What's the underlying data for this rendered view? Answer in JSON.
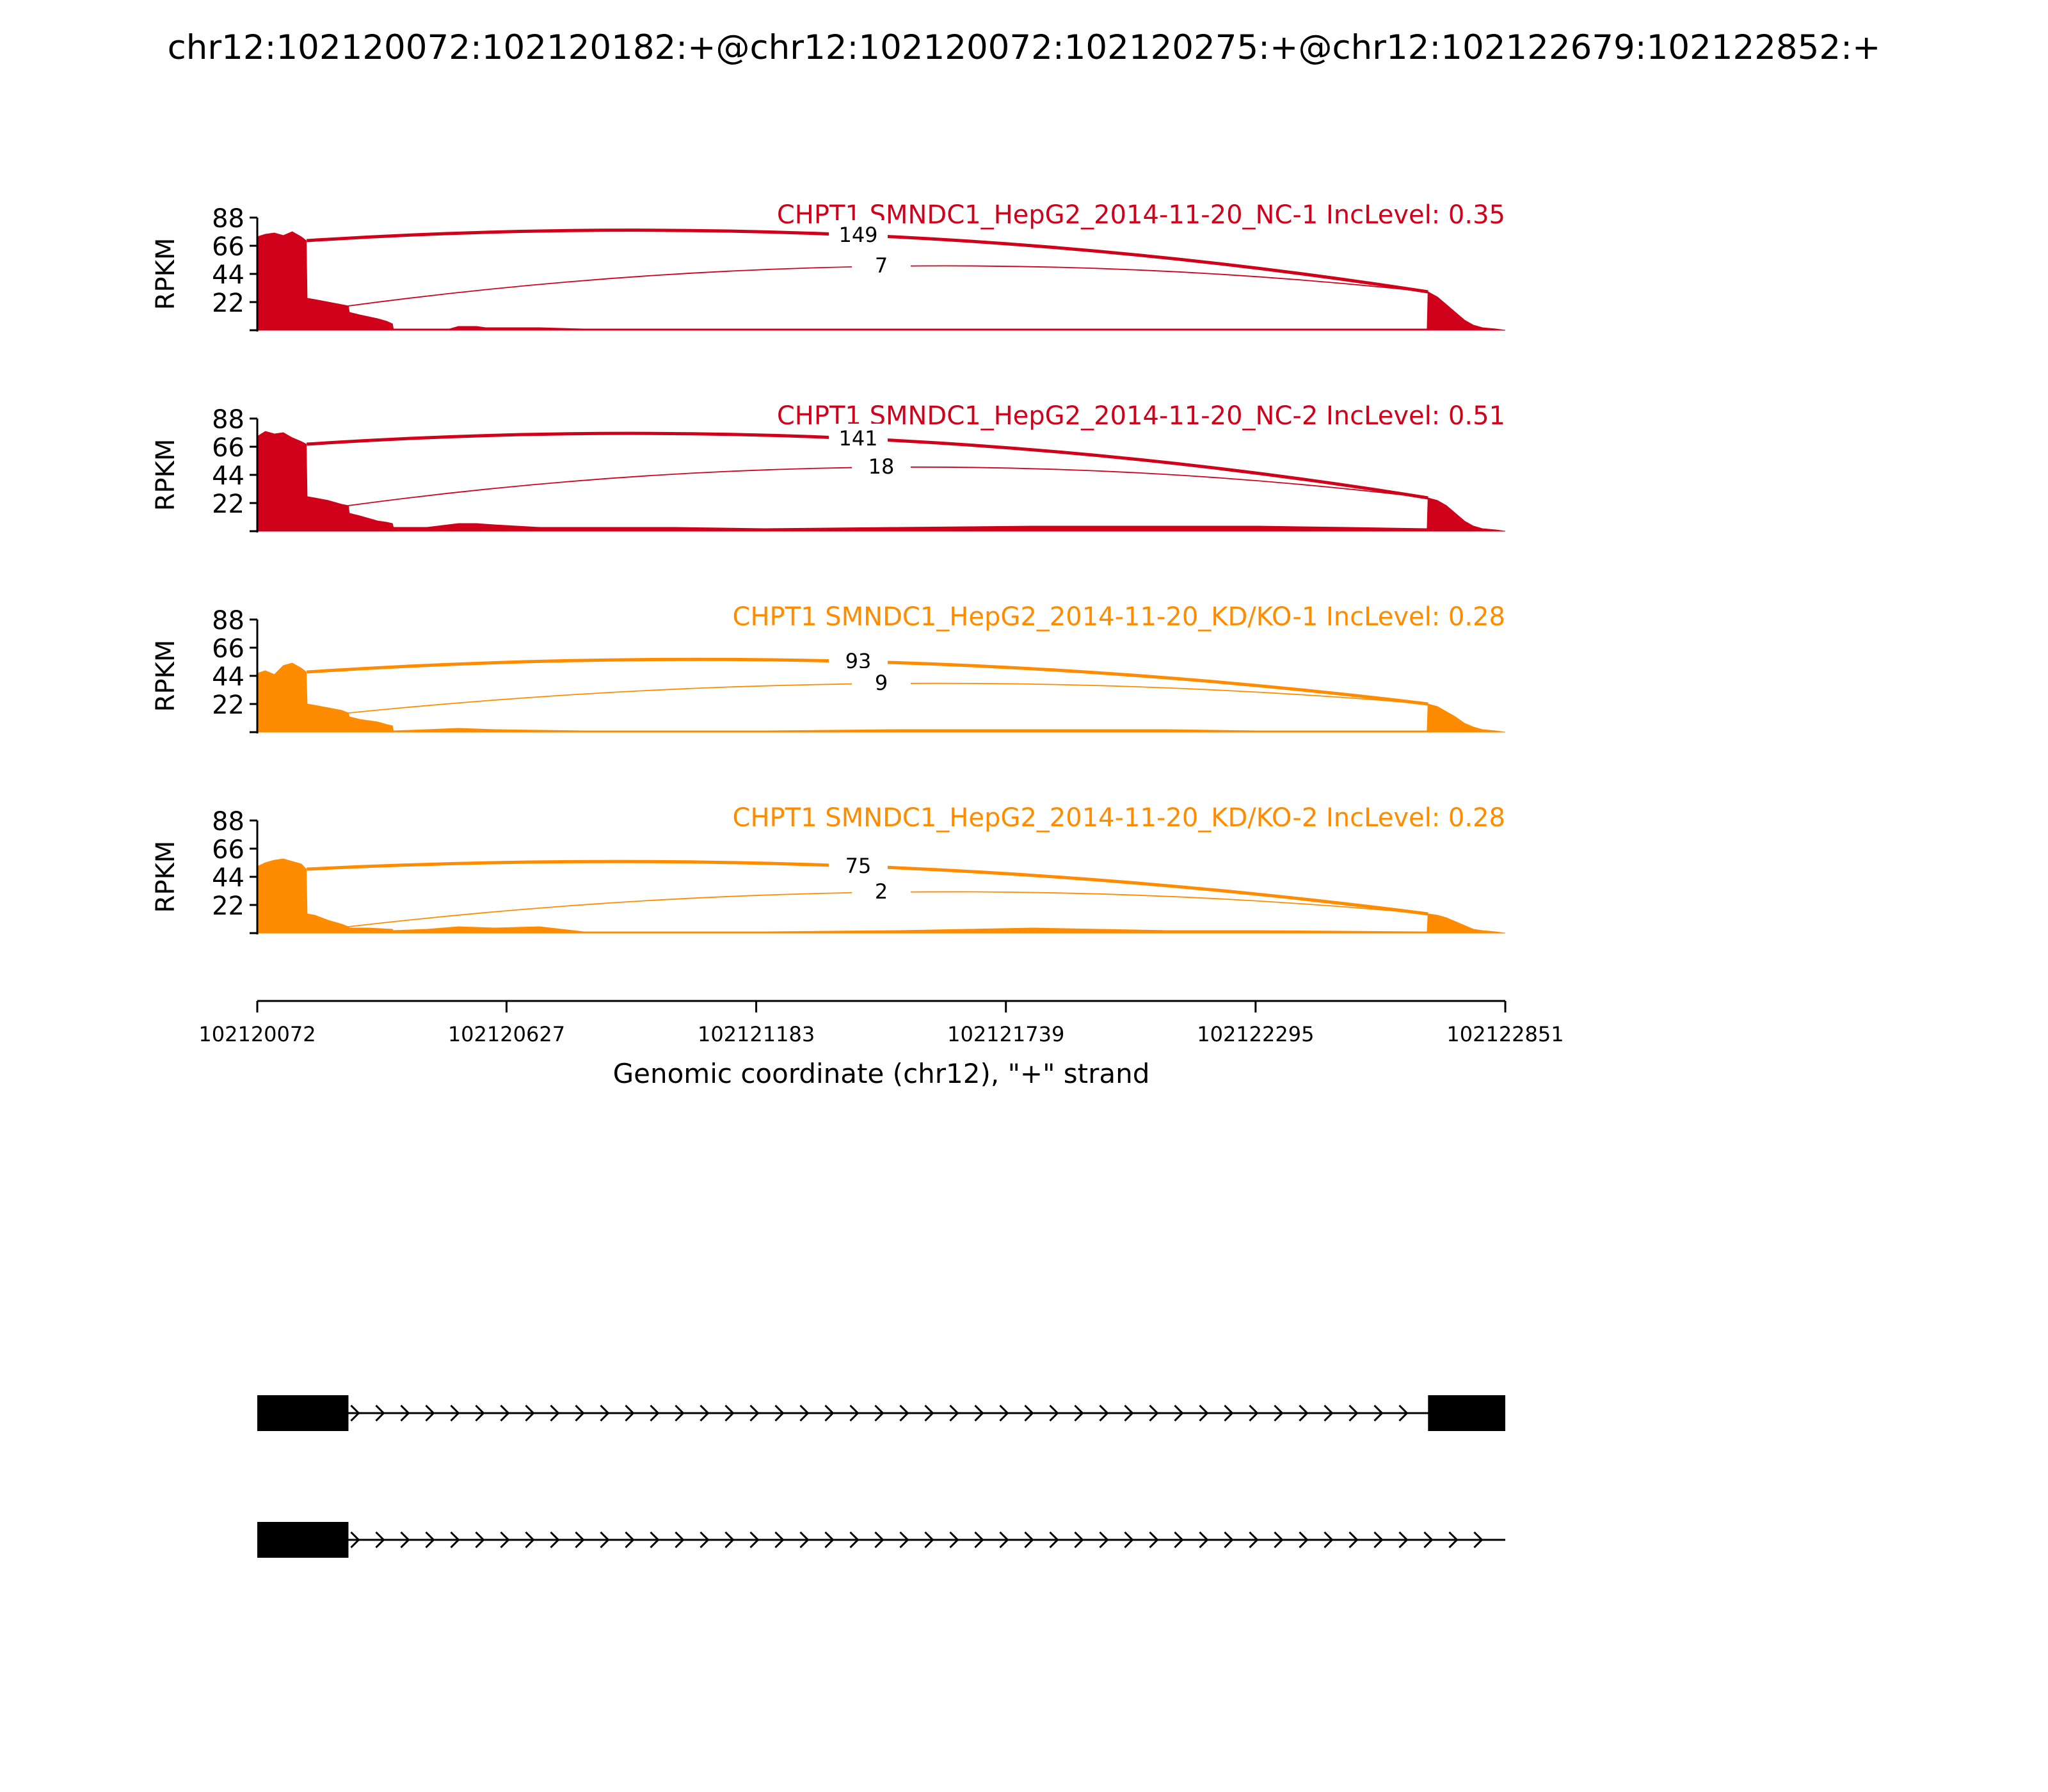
{
  "title": "chr12:102120072:102120182:+@chr12:102120072:102120275:+@chr12:102122679:102122852:+",
  "colors": {
    "nc": "#d0021b",
    "kd": "#ff8c00",
    "axis": "#000000",
    "gene": "#000000"
  },
  "chart_data": {
    "type": "area",
    "x_range": [
      102120072,
      102122851
    ],
    "x_ticks": [
      "102120072",
      "102120627",
      "102121183",
      "102121739",
      "102122295",
      "102122851"
    ],
    "xlabel": "Genomic coordinate (chr12), \"+\" strand",
    "ylabel": "RPKM",
    "y_range": [
      0,
      88
    ],
    "y_ticks": [
      "88",
      "66",
      "44",
      "22"
    ],
    "exons": [
      {
        "name": "exon_short",
        "start": 102120072,
        "end": 102120182
      },
      {
        "name": "exon_long",
        "start": 102120072,
        "end": 102120275
      },
      {
        "name": "exon_downstream",
        "start": 102122679,
        "end": 102122852
      }
    ],
    "panels": [
      {
        "label": "CHPT1 SMNDC1_HepG2_2014-11-20_NC-1 IncLevel: 0.35",
        "color_key": "nc",
        "coverage": [
          [
            102120072,
            73
          ],
          [
            102120090,
            75
          ],
          [
            102120110,
            76
          ],
          [
            102120130,
            74
          ],
          [
            102120150,
            77
          ],
          [
            102120170,
            73
          ],
          [
            102120181,
            70
          ],
          [
            102120183,
            25
          ],
          [
            102120200,
            24
          ],
          [
            102120230,
            22
          ],
          [
            102120260,
            20
          ],
          [
            102120275,
            19
          ],
          [
            102120277,
            14
          ],
          [
            102120300,
            12
          ],
          [
            102120340,
            9
          ],
          [
            102120360,
            7
          ],
          [
            102120373,
            5
          ],
          [
            102120375,
            1
          ],
          [
            102120500,
            1
          ],
          [
            102120520,
            3
          ],
          [
            102120560,
            3
          ],
          [
            102120580,
            2
          ],
          [
            102120700,
            2
          ],
          [
            102120800,
            1
          ],
          [
            102121000,
            1
          ],
          [
            102121200,
            1
          ],
          [
            102121500,
            1
          ],
          [
            102121800,
            1
          ],
          [
            102122100,
            1
          ],
          [
            102122300,
            1
          ],
          [
            102122500,
            1
          ],
          [
            102122677,
            1
          ],
          [
            102122679,
            30
          ],
          [
            102122700,
            26
          ],
          [
            102122720,
            20
          ],
          [
            102122740,
            14
          ],
          [
            102122760,
            8
          ],
          [
            102122780,
            4
          ],
          [
            102122800,
            2
          ],
          [
            102122830,
            1
          ],
          [
            102122851,
            0
          ]
        ],
        "junctions": [
          {
            "from": 102120182,
            "to": 102122679,
            "count": "149",
            "height": 74
          },
          {
            "from": 102120275,
            "to": 102122679,
            "count": "7",
            "height": 50
          }
        ]
      },
      {
        "label": "CHPT1 SMNDC1_HepG2_2014-11-20_NC-2 IncLevel: 0.51",
        "color_key": "nc",
        "coverage": [
          [
            102120072,
            74
          ],
          [
            102120090,
            78
          ],
          [
            102120110,
            76
          ],
          [
            102120130,
            77
          ],
          [
            102120150,
            73
          ],
          [
            102120170,
            70
          ],
          [
            102120181,
            68
          ],
          [
            102120183,
            27
          ],
          [
            102120200,
            26
          ],
          [
            102120230,
            24
          ],
          [
            102120260,
            21
          ],
          [
            102120275,
            20
          ],
          [
            102120277,
            14
          ],
          [
            102120300,
            12
          ],
          [
            102120340,
            8
          ],
          [
            102120360,
            7
          ],
          [
            102120373,
            6
          ],
          [
            102120375,
            3
          ],
          [
            102120450,
            3
          ],
          [
            102120520,
            6
          ],
          [
            102120560,
            6
          ],
          [
            102120600,
            5
          ],
          [
            102120700,
            3
          ],
          [
            102120800,
            3
          ],
          [
            102121000,
            3
          ],
          [
            102121200,
            2
          ],
          [
            102121500,
            3
          ],
          [
            102121800,
            4
          ],
          [
            102122100,
            4
          ],
          [
            102122300,
            4
          ],
          [
            102122500,
            3
          ],
          [
            102122677,
            2
          ],
          [
            102122679,
            26
          ],
          [
            102122700,
            24
          ],
          [
            102122720,
            20
          ],
          [
            102122740,
            14
          ],
          [
            102122760,
            8
          ],
          [
            102122780,
            4
          ],
          [
            102122800,
            2
          ],
          [
            102122830,
            1
          ],
          [
            102122851,
            0
          ]
        ],
        "junctions": [
          {
            "from": 102120182,
            "to": 102122679,
            "count": "141",
            "height": 72
          },
          {
            "from": 102120275,
            "to": 102122679,
            "count": "18",
            "height": 50
          }
        ]
      },
      {
        "label": "CHPT1 SMNDC1_HepG2_2014-11-20_KD/KO-1 IncLevel: 0.28",
        "color_key": "kd",
        "coverage": [
          [
            102120072,
            46
          ],
          [
            102120090,
            48
          ],
          [
            102120110,
            45
          ],
          [
            102120130,
            52
          ],
          [
            102120150,
            54
          ],
          [
            102120170,
            50
          ],
          [
            102120181,
            47
          ],
          [
            102120183,
            22
          ],
          [
            102120200,
            21
          ],
          [
            102120230,
            19
          ],
          [
            102120260,
            17
          ],
          [
            102120275,
            15
          ],
          [
            102120277,
            12
          ],
          [
            102120300,
            10
          ],
          [
            102120340,
            8
          ],
          [
            102120360,
            6
          ],
          [
            102120373,
            5
          ],
          [
            102120375,
            1
          ],
          [
            102120450,
            2
          ],
          [
            102120520,
            3
          ],
          [
            102120600,
            2
          ],
          [
            102120800,
            1
          ],
          [
            102121000,
            1
          ],
          [
            102121200,
            1
          ],
          [
            102121500,
            2
          ],
          [
            102121800,
            2
          ],
          [
            102122100,
            2
          ],
          [
            102122300,
            1
          ],
          [
            102122677,
            1
          ],
          [
            102122679,
            22
          ],
          [
            102122700,
            20
          ],
          [
            102122720,
            16
          ],
          [
            102122740,
            12
          ],
          [
            102122760,
            7
          ],
          [
            102122780,
            4
          ],
          [
            102122800,
            2
          ],
          [
            102122830,
            1
          ],
          [
            102122851,
            0
          ]
        ],
        "junctions": [
          {
            "from": 102120182,
            "to": 102122679,
            "count": "93",
            "height": 55
          },
          {
            "from": 102120275,
            "to": 102122679,
            "count": "9",
            "height": 38
          }
        ]
      },
      {
        "label": "CHPT1 SMNDC1_HepG2_2014-11-20_KD/KO-2 IncLevel: 0.28",
        "color_key": "kd",
        "coverage": [
          [
            102120072,
            52
          ],
          [
            102120090,
            55
          ],
          [
            102120110,
            57
          ],
          [
            102120130,
            58
          ],
          [
            102120150,
            56
          ],
          [
            102120170,
            54
          ],
          [
            102120181,
            50
          ],
          [
            102120183,
            15
          ],
          [
            102120200,
            14
          ],
          [
            102120230,
            10
          ],
          [
            102120260,
            7
          ],
          [
            102120275,
            5
          ],
          [
            102120277,
            4
          ],
          [
            102120320,
            4
          ],
          [
            102120373,
            3
          ],
          [
            102120375,
            2
          ],
          [
            102120450,
            3
          ],
          [
            102120520,
            5
          ],
          [
            102120600,
            4
          ],
          [
            102120700,
            5
          ],
          [
            102120800,
            1
          ],
          [
            102121000,
            1
          ],
          [
            102121200,
            1
          ],
          [
            102121500,
            2
          ],
          [
            102121800,
            4
          ],
          [
            102122100,
            2
          ],
          [
            102122300,
            2
          ],
          [
            102122677,
            1
          ],
          [
            102122679,
            15
          ],
          [
            102122700,
            14
          ],
          [
            102122720,
            12
          ],
          [
            102122740,
            9
          ],
          [
            102122760,
            6
          ],
          [
            102122780,
            3
          ],
          [
            102122800,
            2
          ],
          [
            102122830,
            1
          ],
          [
            102122851,
            0
          ]
        ],
        "junctions": [
          {
            "from": 102120182,
            "to": 102122679,
            "count": "75",
            "height": 52
          },
          {
            "from": 102120275,
            "to": 102122679,
            "count": "2",
            "height": 32
          }
        ]
      }
    ],
    "isoforms": [
      {
        "exons": [
          [
            102120072,
            102120182
          ],
          [
            102120072,
            102120275
          ],
          [
            102122679,
            102122852
          ]
        ]
      },
      {
        "exons": [
          [
            102120072,
            102120182
          ],
          [
            102120072,
            102120275
          ]
        ]
      }
    ]
  }
}
